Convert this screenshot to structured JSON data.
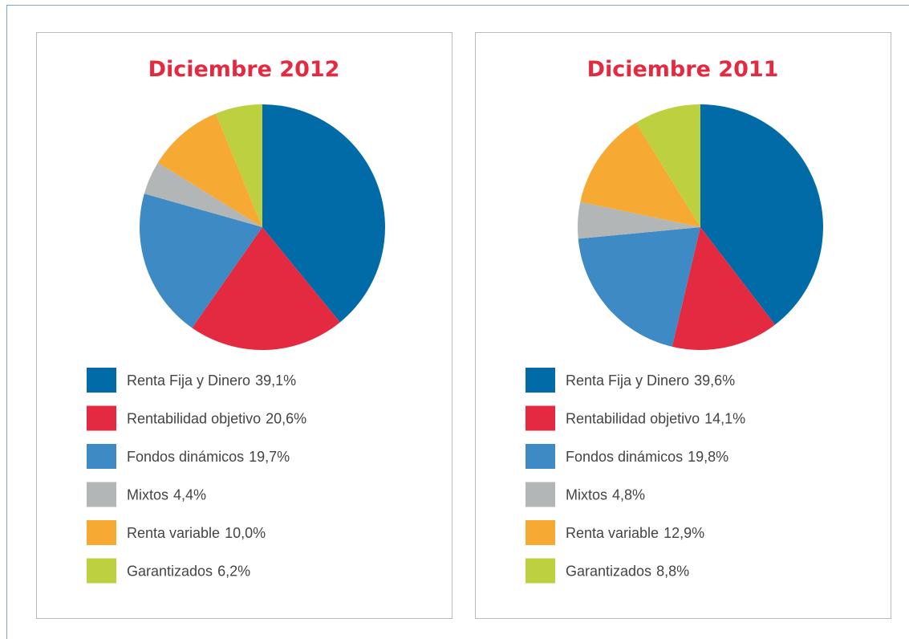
{
  "chart_data": [
    {
      "type": "pie",
      "title": "Diciembre 2012",
      "categories": [
        "Renta Fija y Dinero",
        "Rentabilidad objetivo",
        "Fondos dinámicos",
        "Mixtos",
        "Renta variable",
        "Garantizados"
      ],
      "values": [
        39.1,
        20.6,
        19.7,
        4.4,
        10.0,
        6.2
      ],
      "value_labels": [
        "39,1%",
        "20,6%",
        "19,7%",
        "4,4%",
        "10,0%",
        "6,2%"
      ],
      "colors": [
        "#006ba6",
        "#e42a40",
        "#3d8ac4",
        "#b2b6b6",
        "#f6aa33",
        "#bdd040"
      ]
    },
    {
      "type": "pie",
      "title": "Diciembre 2011",
      "categories": [
        "Renta Fija y Dinero",
        "Rentabilidad objetivo",
        "Fondos dinámicos",
        "Mixtos",
        "Renta variable",
        "Garantizados"
      ],
      "values": [
        39.6,
        14.1,
        19.8,
        4.8,
        12.9,
        8.8
      ],
      "value_labels": [
        "39,6%",
        "14,1%",
        "19,8%",
        "4,8%",
        "12,9%",
        "8,8%"
      ],
      "colors": [
        "#006ba6",
        "#e42a40",
        "#3d8ac4",
        "#b2b6b6",
        "#f6aa33",
        "#bdd040"
      ]
    }
  ]
}
